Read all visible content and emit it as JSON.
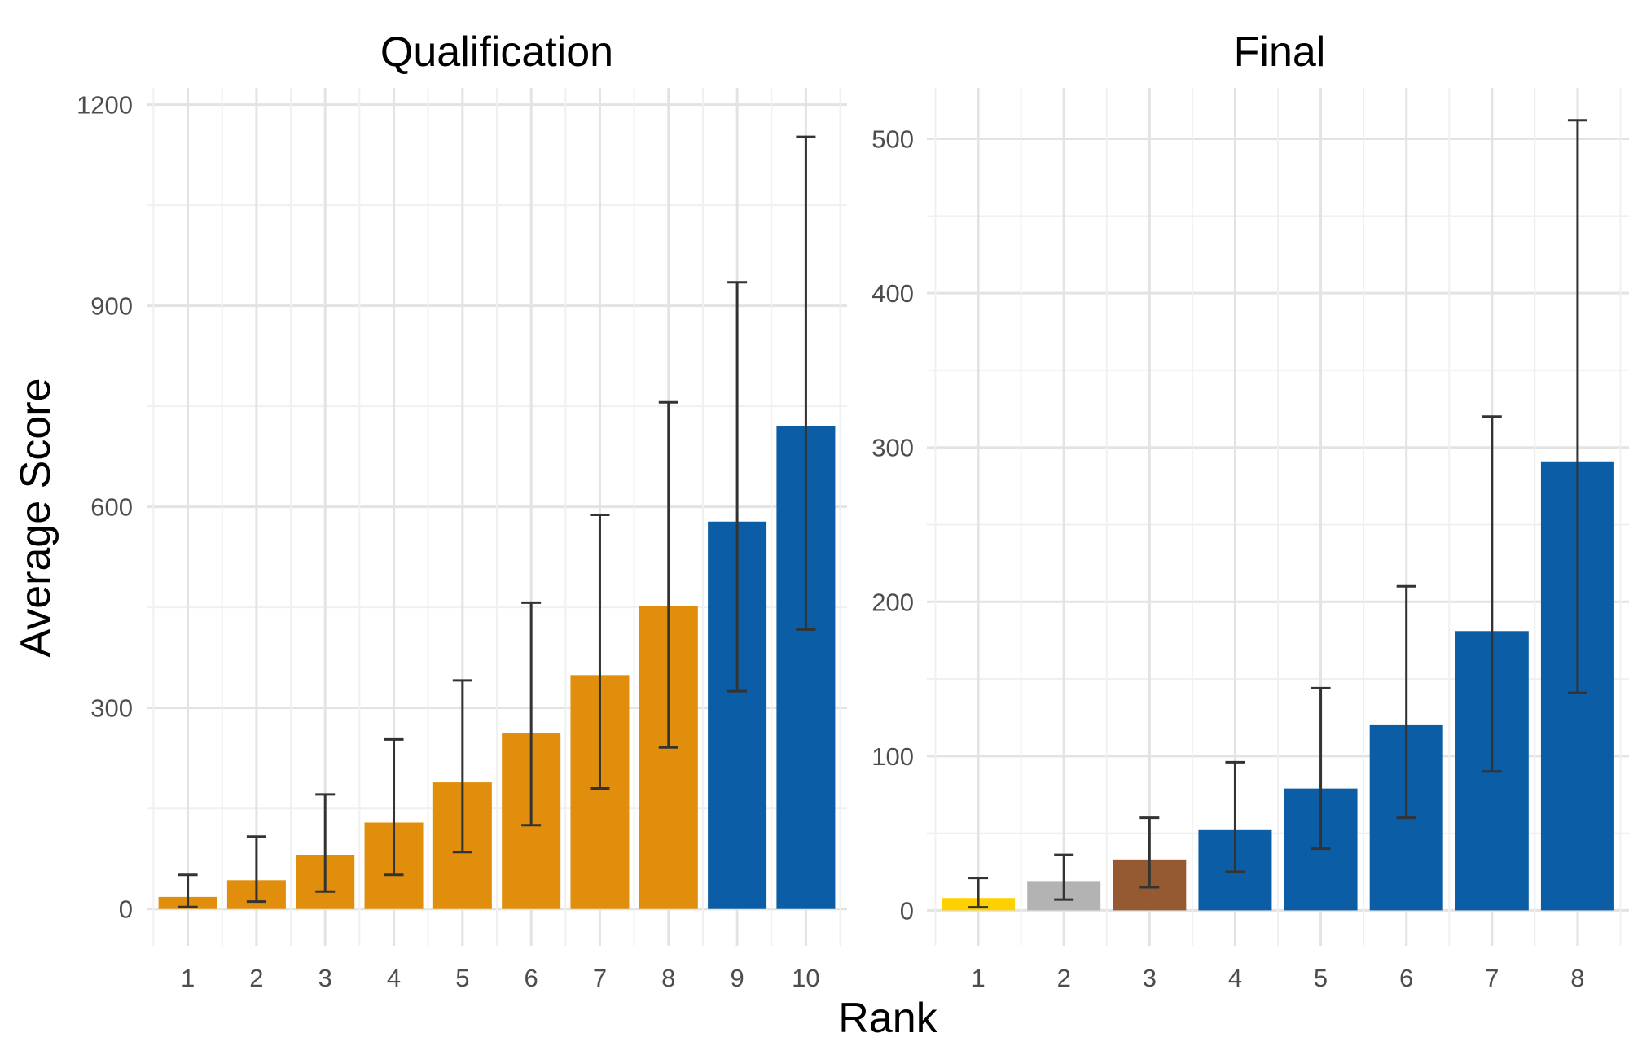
{
  "chart_data": {
    "type": "bar",
    "xlabel": "Rank",
    "ylabel": "Average Score",
    "colors": {
      "top8": "#E08E0B",
      "rest": "#0B5EA5",
      "gold": "#FFD000",
      "silver": "#B3B3B3",
      "bronze": "#955A32",
      "error_bar": "#333333",
      "grid_major": "#E3E3E3",
      "grid_minor": "#F0F0F0"
    },
    "panels": [
      {
        "title": "Qualification",
        "categories": [
          "1",
          "2",
          "3",
          "4",
          "5",
          "6",
          "7",
          "8",
          "9",
          "10"
        ],
        "values": [
          18,
          43,
          81,
          129,
          189,
          262,
          349,
          452,
          578,
          721
        ],
        "error_low": [
          3,
          11,
          26,
          51,
          85,
          125,
          180,
          241,
          325,
          417
        ],
        "error_high": [
          51,
          108,
          171,
          253,
          341,
          457,
          588,
          756,
          935,
          1152
        ],
        "bar_colors": [
          "top8",
          "top8",
          "top8",
          "top8",
          "top8",
          "top8",
          "top8",
          "top8",
          "rest",
          "rest"
        ],
        "ylim": [
          -55,
          1225
        ],
        "yticks": [
          0,
          300,
          600,
          900,
          1200
        ],
        "ytick_labels": [
          "0",
          "300",
          "600",
          "900",
          "1200"
        ],
        "yminor": [
          150,
          450,
          750,
          1050
        ]
      },
      {
        "title": "Final",
        "categories": [
          "1",
          "2",
          "3",
          "4",
          "5",
          "6",
          "7",
          "8"
        ],
        "values": [
          8,
          19,
          33,
          52,
          79,
          120,
          181,
          291
        ],
        "error_low": [
          2,
          7,
          15,
          25,
          40,
          60,
          90,
          141
        ],
        "error_high": [
          21,
          36,
          60,
          96,
          144,
          210,
          320,
          512
        ],
        "bar_colors": [
          "gold",
          "silver",
          "bronze",
          "rest",
          "rest",
          "rest",
          "rest",
          "rest"
        ],
        "ylim": [
          -23,
          533
        ],
        "yticks": [
          0,
          100,
          200,
          300,
          400,
          500
        ],
        "ytick_labels": [
          "0",
          "100",
          "200",
          "300",
          "400",
          "500"
        ],
        "yminor": [
          50,
          150,
          250,
          350,
          450
        ]
      }
    ]
  }
}
